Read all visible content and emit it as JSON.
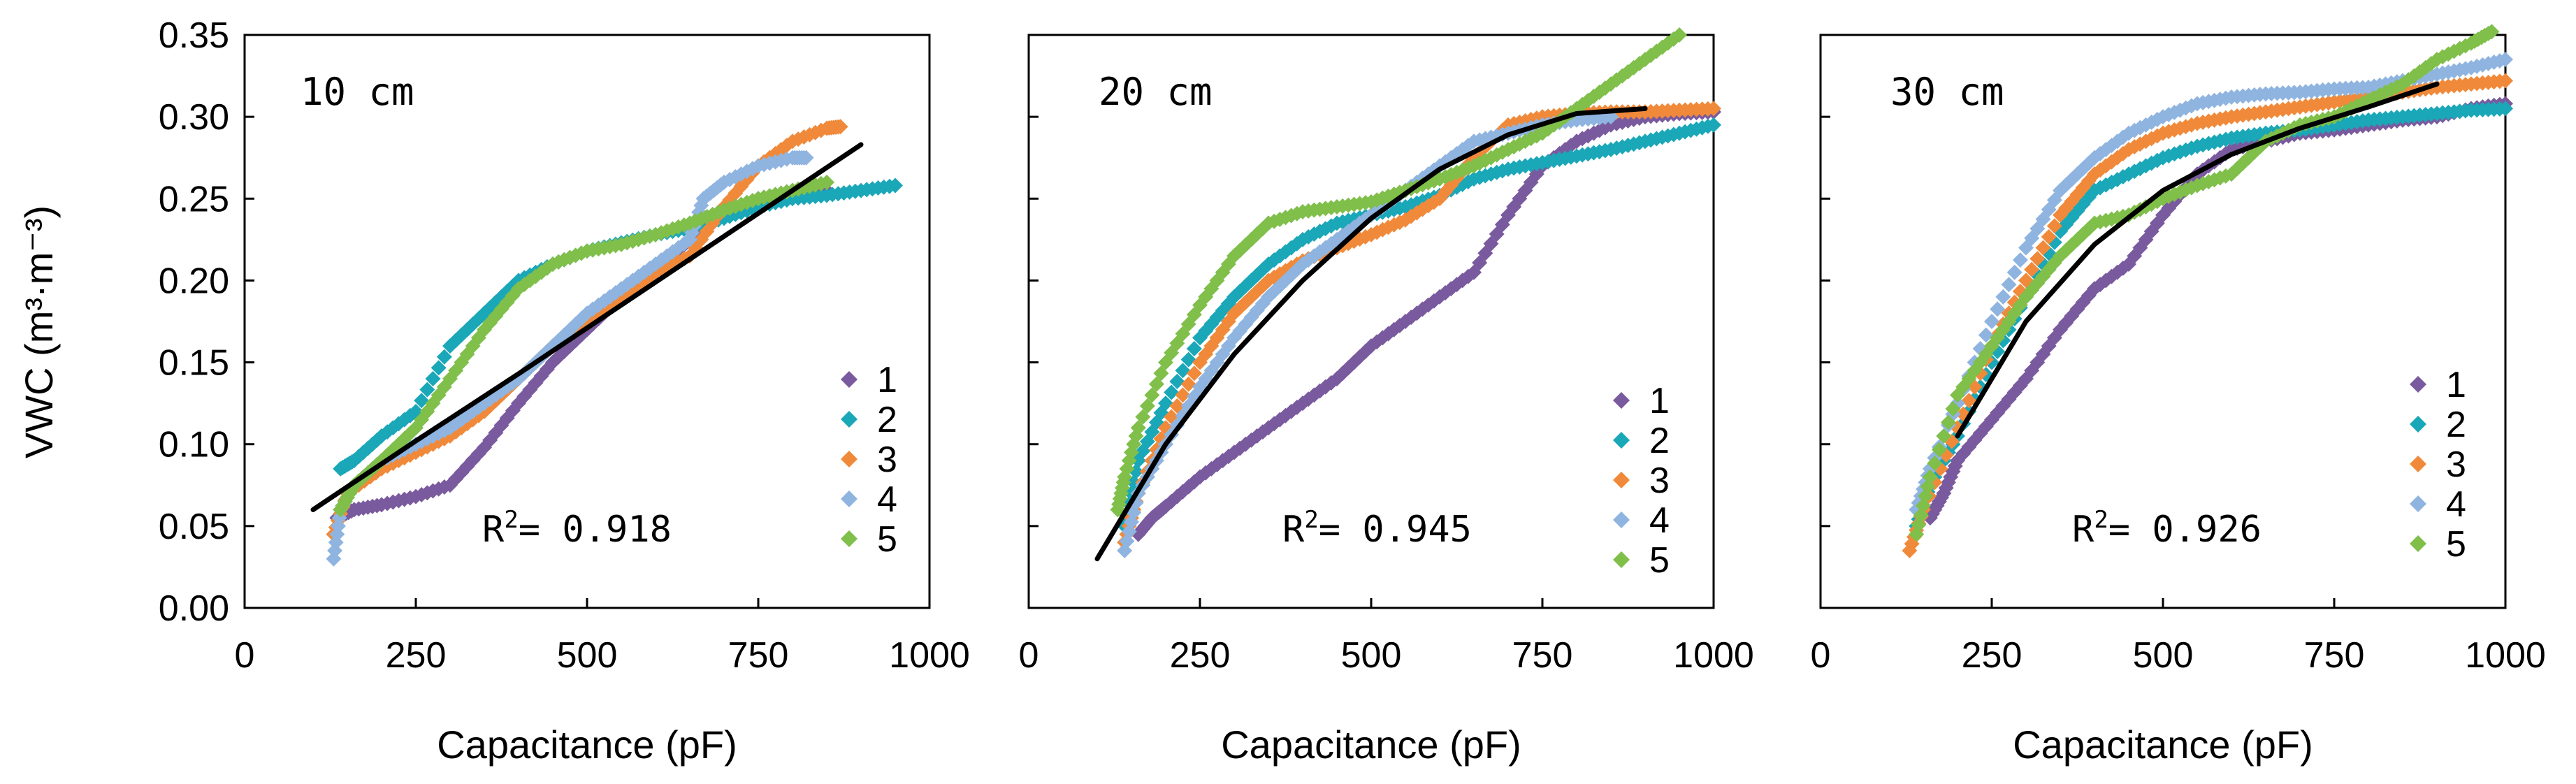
{
  "colors": {
    "1": "#7a5a9e",
    "2": "#1aa7b8",
    "3": "#f08a3a",
    "4": "#8fb4e0",
    "5": "#7fbf4a",
    "fit": "#000000"
  },
  "chart_data": [
    {
      "type": "scatter",
      "title": "10 cm",
      "xlabel": "Capacitance (pF)",
      "ylabel": "VWC (m³·m⁻³)",
      "xlim": [
        0,
        1000
      ],
      "ylim": [
        0,
        0.35
      ],
      "xticks": [
        "0",
        "250",
        "500",
        "750",
        "1000"
      ],
      "yticks": [
        "0.00",
        "0.05",
        "0.10",
        "0.15",
        "0.20",
        "0.25",
        "0.30",
        "0.35"
      ],
      "legend": [
        "1",
        "2",
        "3",
        "4",
        "5"
      ],
      "r2_label": "R",
      "r2_value": "= 0.918",
      "series": [
        {
          "name": "1",
          "x": [
            135,
            160,
            200,
            250,
            300,
            350,
            400,
            450,
            500,
            550,
            600,
            650,
            700,
            750,
            800,
            850
          ],
          "y": [
            0.055,
            0.06,
            0.063,
            0.068,
            0.075,
            0.098,
            0.125,
            0.15,
            0.17,
            0.19,
            0.205,
            0.225,
            0.24,
            0.25,
            0.255,
            0.255
          ]
        },
        {
          "name": "2",
          "x": [
            140,
            160,
            200,
            250,
            300,
            350,
            400,
            450,
            500,
            550,
            600,
            650,
            700,
            750,
            800,
            850,
            900,
            950
          ],
          "y": [
            0.085,
            0.09,
            0.105,
            0.12,
            0.16,
            0.18,
            0.2,
            0.21,
            0.218,
            0.223,
            0.228,
            0.232,
            0.238,
            0.245,
            0.25,
            0.252,
            0.255,
            0.258
          ]
        },
        {
          "name": "3",
          "x": [
            130,
            150,
            200,
            250,
            300,
            350,
            400,
            450,
            500,
            550,
            600,
            650,
            700,
            750,
            800,
            850,
            870
          ],
          "y": [
            0.045,
            0.07,
            0.085,
            0.095,
            0.105,
            0.12,
            0.14,
            0.16,
            0.175,
            0.19,
            0.205,
            0.215,
            0.245,
            0.27,
            0.285,
            0.293,
            0.294
          ]
        },
        {
          "name": "4",
          "x": [
            130,
            140,
            160,
            200,
            250,
            300,
            350,
            400,
            450,
            500,
            550,
            600,
            650,
            670,
            700,
            750,
            800,
            820
          ],
          "y": [
            0.03,
            0.06,
            0.075,
            0.09,
            0.1,
            0.11,
            0.125,
            0.14,
            0.16,
            0.18,
            0.195,
            0.21,
            0.225,
            0.25,
            0.26,
            0.27,
            0.275,
            0.275
          ]
        },
        {
          "name": "5",
          "x": [
            140,
            160,
            200,
            250,
            300,
            350,
            400,
            450,
            500,
            550,
            600,
            650,
            700,
            750,
            800,
            850
          ],
          "y": [
            0.06,
            0.075,
            0.09,
            0.11,
            0.14,
            0.17,
            0.195,
            0.21,
            0.218,
            0.222,
            0.228,
            0.235,
            0.243,
            0.25,
            0.255,
            0.26
          ]
        }
      ],
      "fit": {
        "x": [
          100,
          250,
          400,
          550,
          700,
          900
        ],
        "y": [
          0.06,
          0.102,
          0.143,
          0.185,
          0.227,
          0.283
        ]
      }
    },
    {
      "type": "scatter",
      "title": "20 cm",
      "xlabel": "Capacitance (pF)",
      "xlim": [
        0,
        1000
      ],
      "ylim": [
        0,
        0.35
      ],
      "xticks": [
        "0",
        "250",
        "500",
        "750",
        "1000"
      ],
      "legend": [
        "1",
        "2",
        "3",
        "4",
        "5"
      ],
      "r2_label": "R",
      "r2_value": "= 0.945",
      "series": [
        {
          "name": "1",
          "x": [
            160,
            180,
            200,
            250,
            300,
            350,
            400,
            450,
            500,
            550,
            600,
            650,
            700,
            750,
            800,
            850,
            900,
            950,
            1000
          ],
          "y": [
            0.045,
            0.055,
            0.062,
            0.08,
            0.095,
            0.11,
            0.125,
            0.14,
            0.16,
            0.175,
            0.19,
            0.205,
            0.24,
            0.27,
            0.285,
            0.295,
            0.3,
            0.302,
            0.303
          ]
        },
        {
          "name": "2",
          "x": [
            140,
            160,
            200,
            250,
            300,
            350,
            400,
            450,
            500,
            550,
            600,
            650,
            700,
            750,
            800,
            850,
            900,
            950,
            1000
          ],
          "y": [
            0.05,
            0.09,
            0.125,
            0.165,
            0.19,
            0.21,
            0.225,
            0.235,
            0.24,
            0.245,
            0.252,
            0.262,
            0.268,
            0.272,
            0.276,
            0.28,
            0.285,
            0.29,
            0.295
          ]
        },
        {
          "name": "3",
          "x": [
            140,
            160,
            200,
            250,
            300,
            350,
            400,
            450,
            500,
            550,
            600,
            650,
            700,
            750,
            800,
            850,
            900,
            950,
            1000
          ],
          "y": [
            0.04,
            0.07,
            0.11,
            0.15,
            0.18,
            0.2,
            0.212,
            0.22,
            0.228,
            0.237,
            0.25,
            0.275,
            0.295,
            0.3,
            0.302,
            0.303,
            0.303,
            0.304,
            0.305
          ]
        },
        {
          "name": "4",
          "x": [
            140,
            160,
            200,
            250,
            300,
            350,
            400,
            450,
            500,
            550,
            600,
            650,
            700,
            750,
            800,
            850
          ],
          "y": [
            0.035,
            0.07,
            0.1,
            0.135,
            0.165,
            0.19,
            0.21,
            0.225,
            0.24,
            0.255,
            0.27,
            0.285,
            0.29,
            0.295,
            0.298,
            0.3
          ]
        },
        {
          "name": "5",
          "x": [
            130,
            140,
            160,
            200,
            250,
            300,
            350,
            400,
            450,
            500,
            550,
            600,
            650,
            700,
            750,
            800,
            850,
            900,
            950
          ],
          "y": [
            0.06,
            0.08,
            0.11,
            0.15,
            0.185,
            0.215,
            0.235,
            0.242,
            0.245,
            0.248,
            0.255,
            0.262,
            0.27,
            0.28,
            0.29,
            0.305,
            0.32,
            0.335,
            0.35
          ]
        }
      ],
      "fit": {
        "x": [
          100,
          200,
          300,
          400,
          500,
          600,
          700,
          800,
          900
        ],
        "y": [
          0.03,
          0.1,
          0.155,
          0.2,
          0.238,
          0.268,
          0.289,
          0.302,
          0.305
        ]
      }
    },
    {
      "type": "scatter",
      "title": "30 cm",
      "xlabel": "Capacitance (pF)",
      "xlim": [
        0,
        1000
      ],
      "ylim": [
        0,
        0.35
      ],
      "xticks": [
        "0",
        "250",
        "500",
        "750",
        "1000"
      ],
      "legend": [
        "1",
        "2",
        "3",
        "4",
        "5"
      ],
      "r2_label": "R",
      "r2_value": "= 0.926",
      "series": [
        {
          "name": "1",
          "x": [
            160,
            180,
            200,
            250,
            300,
            350,
            400,
            450,
            500,
            550,
            600,
            650,
            700,
            750,
            800,
            850,
            900,
            950,
            1000
          ],
          "y": [
            0.055,
            0.07,
            0.09,
            0.115,
            0.14,
            0.17,
            0.195,
            0.21,
            0.24,
            0.265,
            0.28,
            0.285,
            0.29,
            0.292,
            0.295,
            0.298,
            0.3,
            0.305,
            0.308
          ]
        },
        {
          "name": "2",
          "x": [
            140,
            160,
            200,
            250,
            300,
            350,
            400,
            450,
            500,
            550,
            600,
            650,
            700,
            750,
            800,
            850,
            900,
            950,
            1000
          ],
          "y": [
            0.05,
            0.075,
            0.105,
            0.15,
            0.19,
            0.23,
            0.255,
            0.265,
            0.275,
            0.282,
            0.287,
            0.29,
            0.292,
            0.295,
            0.298,
            0.3,
            0.302,
            0.304,
            0.305
          ]
        },
        {
          "name": "3",
          "x": [
            130,
            150,
            200,
            250,
            300,
            350,
            400,
            450,
            500,
            550,
            600,
            650,
            700,
            750,
            800,
            850,
            900,
            950,
            1000
          ],
          "y": [
            0.035,
            0.06,
            0.11,
            0.16,
            0.2,
            0.24,
            0.265,
            0.28,
            0.29,
            0.296,
            0.3,
            0.303,
            0.306,
            0.309,
            0.312,
            0.315,
            0.318,
            0.32,
            0.322
          ]
        },
        {
          "name": "4",
          "x": [
            140,
            160,
            200,
            250,
            300,
            350,
            400,
            450,
            500,
            550,
            600,
            650,
            700,
            750,
            800,
            850,
            900,
            950,
            1000
          ],
          "y": [
            0.06,
            0.085,
            0.125,
            0.175,
            0.22,
            0.255,
            0.275,
            0.29,
            0.3,
            0.308,
            0.312,
            0.314,
            0.315,
            0.317,
            0.318,
            0.322,
            0.326,
            0.33,
            0.335
          ]
        },
        {
          "name": "5",
          "x": [
            140,
            160,
            200,
            250,
            300,
            350,
            400,
            450,
            500,
            550,
            600,
            650,
            700,
            750,
            800,
            850,
            900,
            950,
            980
          ],
          "y": [
            0.045,
            0.08,
            0.13,
            0.16,
            0.19,
            0.215,
            0.235,
            0.24,
            0.25,
            0.258,
            0.265,
            0.285,
            0.295,
            0.3,
            0.31,
            0.32,
            0.335,
            0.345,
            0.352
          ]
        }
      ],
      "fit": {
        "x": [
          200,
          300,
          400,
          500,
          600,
          700,
          800,
          900
        ],
        "y": [
          0.105,
          0.175,
          0.222,
          0.255,
          0.277,
          0.293,
          0.306,
          0.32
        ]
      }
    }
  ]
}
